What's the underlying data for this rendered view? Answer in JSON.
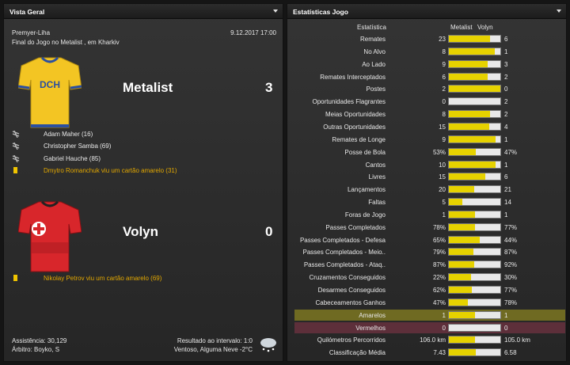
{
  "overview": {
    "title": "Vista Geral",
    "competition": "Premyer-Liha",
    "datetime": "9.12.2017 17:00",
    "venue": "Final do Jogo no Metalist , em Kharkiv",
    "home": {
      "name": "Metalist",
      "score": 3,
      "shirt_text": "DCH",
      "events": [
        {
          "kind": "goal",
          "text": "Adam Maher (16)"
        },
        {
          "kind": "goal",
          "text": "Christopher Samba (69)"
        },
        {
          "kind": "goal",
          "text": "Gabriel Hauche (85)"
        },
        {
          "kind": "card",
          "text": "Dmytro Romanchuk viu um cartão amarelo (31)"
        }
      ]
    },
    "away": {
      "name": "Volyn",
      "score": 0,
      "events": [
        {
          "kind": "card",
          "text": "Nikolay Petrov viu um cartão amarelo (69)"
        }
      ]
    },
    "attendance": "Assistência: 30,129",
    "referee": "Árbitro: Boyko, S",
    "halftime": "Resultado ao intervalo: 1:0",
    "weather": "Ventoso, Alguma Neve -2°C"
  },
  "stats": {
    "title": "Estatísticas Jogo",
    "columns": [
      "Estatística",
      "Metalist",
      "Volyn"
    ],
    "rows": [
      {
        "label": "Remates",
        "home": 23,
        "away": 6
      },
      {
        "label": "No Alvo",
        "home": 8,
        "away": 1
      },
      {
        "label": "Ao Lado",
        "home": 9,
        "away": 3
      },
      {
        "label": "Remates Interceptados",
        "home": 6,
        "away": 2
      },
      {
        "label": "Postes",
        "home": 2,
        "away": 0
      },
      {
        "label": "Oportunidades Flagrantes",
        "home": 0,
        "away": 2
      },
      {
        "label": "Meias Oportunidades",
        "home": 8,
        "away": 2
      },
      {
        "label": "Outras Oportunidades",
        "home": 15,
        "away": 4
      },
      {
        "label": "Remates de Longe",
        "home": 9,
        "away": 1
      },
      {
        "label": "Posse de Bola",
        "home": {
          "value": 53,
          "label": "53%"
        },
        "away": {
          "value": 47,
          "label": "47%"
        }
      },
      {
        "label": "Cantos",
        "home": 10,
        "away": 1
      },
      {
        "label": "Livres",
        "home": 15,
        "away": 6
      },
      {
        "label": "Lançamentos",
        "home": 20,
        "away": 21
      },
      {
        "label": "Faltas",
        "home": 5,
        "away": 14
      },
      {
        "label": "Foras de Jogo",
        "home": 1,
        "away": 1
      },
      {
        "label": "Passes Completados",
        "home": {
          "value": 78,
          "label": "78%"
        },
        "away": {
          "value": 77,
          "label": "77%"
        }
      },
      {
        "label": "Passes Completados - Defesa",
        "home": {
          "value": 65,
          "label": "65%"
        },
        "away": {
          "value": 44,
          "label": "44%"
        }
      },
      {
        "label": "Passes Completados - Meio..",
        "home": {
          "value": 79,
          "label": "79%"
        },
        "away": {
          "value": 87,
          "label": "87%"
        }
      },
      {
        "label": "Passes Completados - Ataq..",
        "home": {
          "value": 87,
          "label": "87%"
        },
        "away": {
          "value": 92,
          "label": "92%"
        }
      },
      {
        "label": "Cruzamentos Conseguidos",
        "home": {
          "value": 22,
          "label": "22%"
        },
        "away": {
          "value": 30,
          "label": "30%"
        }
      },
      {
        "label": "Desarmes Conseguidos",
        "home": {
          "value": 62,
          "label": "62%"
        },
        "away": {
          "value": 77,
          "label": "77%"
        }
      },
      {
        "label": "Cabeceamentos Ganhos",
        "home": {
          "value": 47,
          "label": "47%"
        },
        "away": {
          "value": 78,
          "label": "78%"
        }
      },
      {
        "label": "Amarelos",
        "home": 1,
        "away": 1,
        "highlight": "yellow"
      },
      {
        "label": "Vermelhos",
        "home": 0,
        "away": 0,
        "highlight": "red"
      },
      {
        "label": "Quilómetros Percorridos",
        "home": {
          "value": 106.0,
          "label": "106.0 km"
        },
        "away": {
          "value": 105.0,
          "label": "105.0 km"
        }
      },
      {
        "label": "Classificação Média",
        "home": 7.43,
        "away": 6.58
      }
    ]
  }
}
